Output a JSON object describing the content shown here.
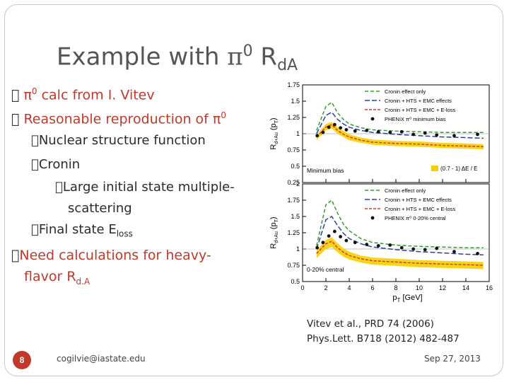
{
  "slide": {
    "title": {
      "main": "Example with ",
      "pi": "π",
      "sup": "0",
      "r": " R",
      "sub": "dA"
    },
    "bullets": [
      {
        "mark": "\u0000",
        "pi": "π",
        "sup": "0",
        "text": " calc from I. Vitev"
      },
      {
        "mark": "\u0000",
        "text": "Reasonable reproduction of ",
        "pi": "π",
        "sup": "0"
      },
      {
        "mark": "\u0000",
        "text": "Nuclear structure function"
      },
      {
        "mark": "\u0000",
        "text": "Cronin"
      },
      {
        "mark": "\u0000",
        "text1": "Large initial state multiple-",
        "text2": "scattering"
      },
      {
        "mark": "\u0000",
        "text": "Final state E",
        "sub": "loss"
      },
      {
        "mark": "\u0000",
        "text1": "Need calculations for heavy-",
        "text2": "flavor R",
        "sub": "d.A"
      }
    ],
    "citation": {
      "line1": "Vitev et al., PRD 74 (2006)",
      "line2": "Phys.Lett. B718 (2012) 482-487"
    },
    "footer": {
      "page": "8",
      "email": "cogilvie@iastate.edu",
      "date": "Sep 27, 2013"
    }
  },
  "chart_data": [
    {
      "type": "line",
      "ylabel": "R",
      "ylabel_sub": "d+Au",
      "ylabel_paren": "(p",
      "ylabel_paren_sub": "T",
      "ylabel_close": ")",
      "ylim": [
        0.25,
        1.75
      ],
      "yticks": [
        "1.75",
        "1.5",
        "1.25",
        "1",
        "0.75",
        "0.5",
        "0.25"
      ],
      "xlim": [
        0,
        16
      ],
      "legend": [
        "Cronin effect only",
        "Cronin + HTS + EMC effects",
        "Cronin + HTS + EMC + E-loss",
        "PHENIX π⁰ minimum bias"
      ],
      "annotation": "Minimum bias",
      "band_label": "(0.7 - 1) ΔE / E",
      "series": [
        {
          "name": "Cronin effect only",
          "color": "#2e9e2e",
          "x": [
            1.2,
            2.0,
            2.5,
            3.0,
            3.5,
            4.0,
            5.0,
            6.0,
            8.0,
            10.0,
            12.0,
            14.0,
            15.5
          ],
          "y": [
            1.05,
            1.42,
            1.48,
            1.32,
            1.22,
            1.15,
            1.09,
            1.06,
            1.04,
            1.03,
            1.02,
            1.02,
            1.02
          ]
        },
        {
          "name": "Cronin + HTS + EMC effects",
          "color": "#2b3fa8",
          "x": [
            1.2,
            2.0,
            2.5,
            3.0,
            3.5,
            4.0,
            5.0,
            6.0,
            8.0,
            10.0,
            12.0,
            14.0,
            15.5
          ],
          "y": [
            1.0,
            1.28,
            1.33,
            1.22,
            1.15,
            1.1,
            1.05,
            1.02,
            0.99,
            0.97,
            0.95,
            0.94,
            0.93
          ]
        },
        {
          "name": "Cronin + HTS + EMC + E-loss",
          "color": "#d83a2a",
          "x": [
            1.2,
            2.0,
            2.5,
            3.0,
            3.5,
            4.0,
            5.0,
            6.0,
            8.0,
            10.0,
            12.0,
            14.0,
            15.5
          ],
          "y": [
            0.95,
            1.1,
            1.14,
            1.05,
            0.99,
            0.95,
            0.9,
            0.87,
            0.85,
            0.84,
            0.82,
            0.81,
            0.8
          ]
        },
        {
          "name": "PHENIX π⁰ minimum bias",
          "color": "#111111",
          "x": [
            1.25,
            1.75,
            2.25,
            2.75,
            3.25,
            3.75,
            4.5,
            5.5,
            6.5,
            7.5,
            8.5,
            9.5,
            10.5,
            11.5,
            13.0,
            15.0
          ],
          "y": [
            0.97,
            1.02,
            1.1,
            1.14,
            1.09,
            1.06,
            1.04,
            1.05,
            1.03,
            1.02,
            1.03,
            0.99,
            1.01,
            0.98,
            0.97,
            0.99
          ]
        }
      ],
      "band": {
        "x": [
          1.2,
          2.0,
          2.5,
          3.0,
          3.5,
          4.0,
          5.0,
          6.0,
          8.0,
          10.0,
          12.0,
          14.0,
          15.5
        ],
        "low": [
          0.9,
          1.05,
          1.08,
          1.0,
          0.95,
          0.9,
          0.86,
          0.83,
          0.81,
          0.8,
          0.78,
          0.77,
          0.76
        ],
        "high": [
          0.98,
          1.15,
          1.18,
          1.1,
          1.04,
          0.99,
          0.94,
          0.91,
          0.89,
          0.88,
          0.86,
          0.85,
          0.84
        ],
        "color": "#f5d000"
      }
    },
    {
      "type": "line",
      "ylabel": "R",
      "ylabel_sub": "d+Au",
      "ylabel_paren": "(p",
      "ylabel_paren_sub": "T",
      "ylabel_close": ")",
      "ylim": [
        0.5,
        2.0
      ],
      "yticks": [
        "2",
        "1.75",
        "1.5",
        "1.25",
        "1",
        "0.75",
        "0.5"
      ],
      "xlim": [
        0,
        16
      ],
      "xticks": [
        "0",
        "2",
        "4",
        "6",
        "8",
        "10",
        "12",
        "14",
        "16"
      ],
      "xlabel": "p",
      "xlabel_sub": "T",
      "xlabel_unit": " [GeV]",
      "legend": [
        "Cronin effect only",
        "Cronin + HTS + EMC effects",
        "Cronin + HTS + EMC + E-loss",
        "PHENIX π⁰ 0-20% central"
      ],
      "annotation": "0-20% central",
      "series": [
        {
          "name": "Cronin effect only",
          "color": "#2e9e2e",
          "x": [
            1.2,
            2.0,
            2.5,
            3.0,
            3.5,
            4.0,
            5.0,
            6.0,
            8.0,
            10.0,
            12.0,
            14.0,
            15.5
          ],
          "y": [
            1.05,
            1.68,
            1.75,
            1.55,
            1.38,
            1.28,
            1.16,
            1.1,
            1.06,
            1.04,
            1.03,
            1.02,
            1.02
          ]
        },
        {
          "name": "Cronin + HTS + EMC effects",
          "color": "#2b3fa8",
          "x": [
            1.2,
            2.0,
            2.5,
            3.0,
            3.5,
            4.0,
            5.0,
            6.0,
            8.0,
            10.0,
            12.0,
            14.0,
            15.5
          ],
          "y": [
            1.0,
            1.45,
            1.5,
            1.36,
            1.24,
            1.16,
            1.08,
            1.03,
            0.99,
            0.96,
            0.94,
            0.92,
            0.91
          ]
        },
        {
          "name": "Cronin + HTS + EMC + E-loss",
          "color": "#d83a2a",
          "x": [
            1.2,
            2.0,
            2.5,
            3.0,
            3.5,
            4.0,
            5.0,
            6.0,
            8.0,
            10.0,
            12.0,
            14.0,
            15.5
          ],
          "y": [
            0.93,
            1.08,
            1.12,
            1.02,
            0.95,
            0.9,
            0.85,
            0.82,
            0.8,
            0.78,
            0.77,
            0.76,
            0.75
          ]
        },
        {
          "name": "PHENIX π⁰ 0-20% central",
          "color": "#111111",
          "x": [
            1.25,
            1.75,
            2.25,
            2.75,
            3.25,
            3.75,
            4.5,
            5.5,
            6.5,
            7.5,
            8.5,
            9.5,
            10.5,
            11.5,
            13.0,
            15.0
          ],
          "y": [
            1.02,
            1.1,
            1.2,
            1.27,
            1.19,
            1.13,
            1.1,
            1.07,
            1.05,
            1.06,
            1.02,
            1.0,
            0.99,
            1.01,
            0.96,
            0.93
          ]
        }
      ],
      "band": {
        "x": [
          1.2,
          2.0,
          2.5,
          3.0,
          3.5,
          4.0,
          5.0,
          6.0,
          8.0,
          10.0,
          12.0,
          14.0,
          15.5
        ],
        "low": [
          0.86,
          1.0,
          1.03,
          0.95,
          0.88,
          0.84,
          0.79,
          0.76,
          0.74,
          0.72,
          0.71,
          0.7,
          0.69
        ],
        "high": [
          0.98,
          1.14,
          1.18,
          1.09,
          1.01,
          0.96,
          0.9,
          0.87,
          0.85,
          0.83,
          0.82,
          0.81,
          0.8
        ],
        "color": "#f5d000"
      }
    }
  ]
}
